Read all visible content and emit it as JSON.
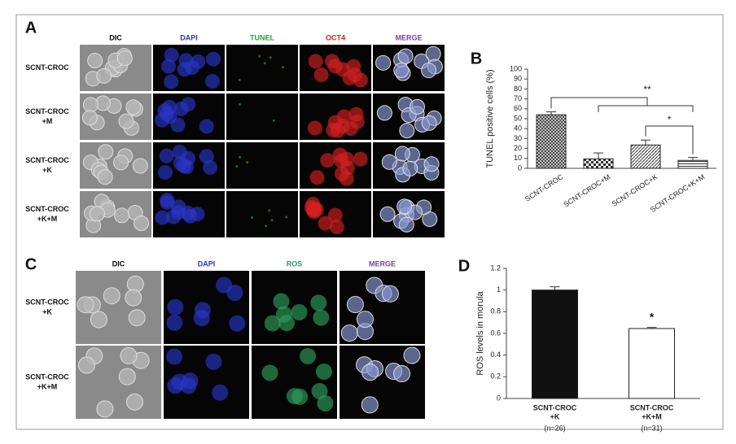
{
  "panels": {
    "A": {
      "label": "A",
      "columns": [
        {
          "name": "DIC",
          "color": "#000000"
        },
        {
          "name": "DAPI",
          "color": "#2a35c8"
        },
        {
          "name": "TUNEL",
          "color": "#22a830"
        },
        {
          "name": "OCT4",
          "color": "#d42020"
        },
        {
          "name": "MERGE",
          "color": "#7a3fa8"
        }
      ],
      "rows": [
        [
          "SCNT-CROC"
        ],
        [
          "SCNT-CROC",
          "+M"
        ],
        [
          "SCNT-CROC",
          "+K"
        ],
        [
          "SCNT-CROC",
          "+K+M"
        ]
      ]
    },
    "C": {
      "label": "C",
      "columns": [
        {
          "name": "DIC",
          "color": "#000000"
        },
        {
          "name": "DAPI",
          "color": "#2a35c8"
        },
        {
          "name": "ROS",
          "color": "#2e9e5e"
        },
        {
          "name": "MERGE",
          "color": "#7a3fa8"
        }
      ],
      "rows": [
        [
          "SCNT-CROC",
          "+K"
        ],
        [
          "SCNT-CROC",
          "+K+M"
        ]
      ]
    }
  },
  "chart_data": [
    {
      "type": "bar",
      "panel_label": "B",
      "ylabel": "TUNEL positive cells (%)",
      "categories": [
        "SCNT-CROC",
        "SCNT-CROC+M",
        "SCNT-CROC+K",
        "SCNT-CROC+K+M"
      ],
      "values": [
        54,
        9.5,
        23.5,
        8
      ],
      "errors": [
        3,
        6,
        5,
        3
      ],
      "patterns": [
        "crosshatch",
        "checker",
        "diagonal",
        "horizontal"
      ],
      "ylim": [
        0,
        100
      ],
      "yticks": [
        0,
        10,
        20,
        30,
        40,
        50,
        60,
        70,
        80,
        90,
        100
      ],
      "annotations": [
        "**",
        "*"
      ]
    },
    {
      "type": "bar",
      "panel_label": "D",
      "ylabel": "ROS levels in morula",
      "categories": [
        [
          "SCNT-CROC",
          "+K"
        ],
        [
          "SCNT-CROC",
          "+K+M"
        ]
      ],
      "sample_sizes": [
        "(n=26)",
        "(n=31)"
      ],
      "values": [
        1.0,
        0.645
      ],
      "errors": [
        0.03,
        0.01
      ],
      "colors": [
        "#111111",
        "#ffffff"
      ],
      "ylim": [
        0,
        1.2
      ],
      "yticks": [
        0,
        0.2,
        0.4,
        0.6,
        0.8,
        1,
        1.2
      ],
      "annotations": [
        "*"
      ]
    }
  ]
}
